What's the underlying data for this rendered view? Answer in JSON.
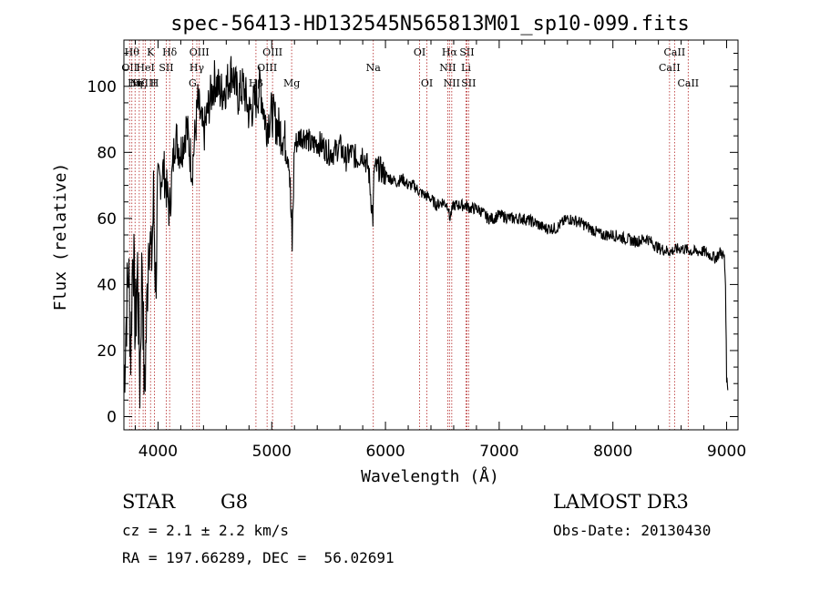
{
  "chart_data": {
    "type": "line",
    "title": "spec-56413-HD132545N565813M01_sp10-099.fits",
    "xlabel": "Wavelength (Å)",
    "ylabel": "Flux (relative)",
    "xlim": [
      3700,
      9100
    ],
    "ylim": [
      -4,
      114
    ],
    "x_ticks": [
      4000,
      5000,
      6000,
      7000,
      8000,
      9000
    ],
    "y_ticks": [
      0,
      20,
      40,
      60,
      80,
      100
    ],
    "x_tick_labels": [
      "4000",
      "5000",
      "6000",
      "7000",
      "8000",
      "9000"
    ],
    "y_tick_labels": [
      "0",
      "20",
      "40",
      "60",
      "80",
      "100"
    ],
    "series": [
      {
        "name": "spectrum",
        "x": [
          3700,
          3720,
          3740,
          3760,
          3780,
          3800,
          3820,
          3840,
          3860,
          3880,
          3900,
          3920,
          3940,
          3960,
          3980,
          4000,
          4050,
          4100,
          4150,
          4200,
          4250,
          4300,
          4350,
          4400,
          4450,
          4500,
          4550,
          4600,
          4650,
          4700,
          4750,
          4800,
          4850,
          4900,
          4950,
          5000,
          5050,
          5100,
          5150,
          5170,
          5180,
          5200,
          5250,
          5300,
          5350,
          5400,
          5450,
          5500,
          5550,
          5600,
          5650,
          5700,
          5750,
          5800,
          5850,
          5890,
          5895,
          5900,
          5950,
          6000,
          6050,
          6100,
          6150,
          6200,
          6250,
          6300,
          6350,
          6400,
          6450,
          6500,
          6550,
          6563,
          6600,
          6650,
          6700,
          6750,
          6800,
          6850,
          6900,
          6950,
          7000,
          7100,
          7200,
          7300,
          7400,
          7500,
          7600,
          7700,
          7800,
          7900,
          8000,
          8100,
          8200,
          8300,
          8400,
          8500,
          8600,
          8700,
          8800,
          8900,
          8950,
          8980,
          8990,
          9000,
          9010
        ],
        "values": [
          10,
          30,
          45,
          20,
          55,
          25,
          45,
          10,
          50,
          5,
          30,
          60,
          45,
          65,
          40,
          70,
          75,
          62,
          85,
          80,
          88,
          75,
          95,
          85,
          95,
          102,
          98,
          100,
          105,
          97,
          100,
          92,
          95,
          100,
          88,
          92,
          88,
          85,
          80,
          60,
          52,
          82,
          85,
          85,
          82,
          83,
          82,
          80,
          80,
          82,
          78,
          80,
          78,
          80,
          75,
          60,
          68,
          75,
          75,
          73,
          72,
          71,
          72,
          70,
          70,
          68,
          67,
          66,
          64,
          65,
          64,
          60,
          64,
          64,
          64,
          63,
          63,
          62,
          60,
          60,
          61,
          60,
          60,
          59,
          57,
          57,
          60,
          59,
          57,
          55,
          55,
          54,
          53,
          54,
          51,
          50,
          51,
          50,
          50,
          48,
          50,
          48,
          40,
          12,
          8
        ]
      }
    ],
    "line_ids": [
      {
        "wavelength": 3750,
        "label": "OII",
        "row": 1
      },
      {
        "wavelength": 3770,
        "label": "Hθ",
        "row": 0
      },
      {
        "wavelength": 3798,
        "label": "Hη",
        "row": 2
      },
      {
        "wavelength": 3835,
        "label": "Hζ",
        "row": 2
      },
      {
        "wavelength": 3869,
        "label": "NeIII",
        "row": 2
      },
      {
        "wavelength": 3889,
        "label": "HeI",
        "row": 1
      },
      {
        "wavelength": 3934,
        "label": "K",
        "row": 0
      },
      {
        "wavelength": 3969,
        "label": "H",
        "row": 2
      },
      {
        "wavelength": 4072,
        "label": "SII",
        "row": 1
      },
      {
        "wavelength": 4102,
        "label": "Hδ",
        "row": 0
      },
      {
        "wavelength": 4304,
        "label": "G",
        "row": 2
      },
      {
        "wavelength": 4341,
        "label": "Hγ",
        "row": 1
      },
      {
        "wavelength": 4363,
        "label": "OIII",
        "row": 0
      },
      {
        "wavelength": 4861,
        "label": "Hβ",
        "row": 2
      },
      {
        "wavelength": 4959,
        "label": "OIII",
        "row": 1
      },
      {
        "wavelength": 5007,
        "label": "OIII",
        "row": 0
      },
      {
        "wavelength": 5175,
        "label": "Mg",
        "row": 2
      },
      {
        "wavelength": 5893,
        "label": "Na",
        "row": 1
      },
      {
        "wavelength": 6300,
        "label": "OI",
        "row": 0
      },
      {
        "wavelength": 6364,
        "label": "OI",
        "row": 2
      },
      {
        "wavelength": 6548,
        "label": "NII",
        "row": 1
      },
      {
        "wavelength": 6563,
        "label": "Hα",
        "row": 0
      },
      {
        "wavelength": 6583,
        "label": "NII",
        "row": 2
      },
      {
        "wavelength": 6708,
        "label": "Li",
        "row": 1
      },
      {
        "wavelength": 6716,
        "label": "SII",
        "row": 0
      },
      {
        "wavelength": 6731,
        "label": "SII",
        "row": 2
      },
      {
        "wavelength": 8498,
        "label": "CaII",
        "row": 1
      },
      {
        "wavelength": 8542,
        "label": "CaII",
        "row": 0
      },
      {
        "wavelength": 8662,
        "label": "CaII",
        "row": 2
      }
    ]
  },
  "info": {
    "object_class": "STAR",
    "subclass": "G8",
    "cz": "cz = 2.1 ± 2.2 km/s",
    "coords": "RA = 197.66289, DEC =  56.02691",
    "survey": "LAMOST DR3",
    "obs_date": "Obs-Date: 20130430"
  },
  "colors": {
    "line_marker": "#b22222",
    "spectrum": "#000000",
    "axis": "#000000"
  }
}
